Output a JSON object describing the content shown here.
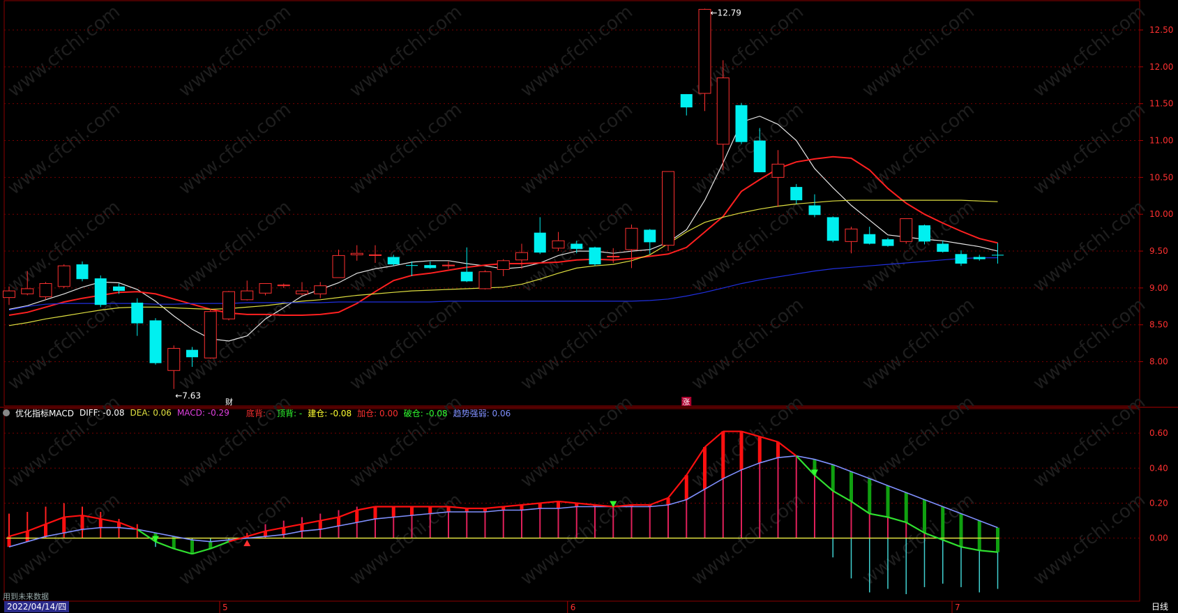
{
  "chart_data": {
    "type": "candlestick",
    "price_axis": {
      "ticks": [
        8.0,
        8.5,
        9.0,
        9.5,
        10.0,
        10.5,
        11.0,
        11.5,
        12.0,
        12.5
      ],
      "range": [
        7.4,
        12.85
      ]
    },
    "annotations": {
      "high_label": "12.79",
      "low_label": "7.63",
      "finance_flag": "财",
      "limit_flag": "涨"
    },
    "candles": [
      {
        "o": 8.87,
        "h": 9.02,
        "l": 8.77,
        "c": 8.96
      },
      {
        "o": 8.92,
        "h": 9.23,
        "l": 8.9,
        "c": 8.99
      },
      {
        "o": 8.88,
        "h": 9.08,
        "l": 8.84,
        "c": 9.06
      },
      {
        "o": 9.02,
        "h": 9.32,
        "l": 9.0,
        "c": 9.3
      },
      {
        "o": 9.32,
        "h": 9.36,
        "l": 9.09,
        "c": 9.12
      },
      {
        "o": 9.13,
        "h": 9.17,
        "l": 8.74,
        "c": 8.77
      },
      {
        "o": 9.02,
        "h": 9.06,
        "l": 8.92,
        "c": 8.96
      },
      {
        "o": 8.8,
        "h": 8.86,
        "l": 8.35,
        "c": 8.52
      },
      {
        "o": 8.56,
        "h": 8.59,
        "l": 7.96,
        "c": 7.98
      },
      {
        "o": 7.88,
        "h": 8.22,
        "l": 7.63,
        "c": 8.18
      },
      {
        "o": 8.16,
        "h": 8.2,
        "l": 7.93,
        "c": 8.06
      },
      {
        "o": 8.05,
        "h": 8.72,
        "l": 8.04,
        "c": 8.68
      },
      {
        "o": 8.58,
        "h": 8.96,
        "l": 8.56,
        "c": 8.95
      },
      {
        "o": 8.84,
        "h": 9.1,
        "l": 8.83,
        "c": 8.96
      },
      {
        "o": 8.93,
        "h": 9.06,
        "l": 8.9,
        "c": 9.06
      },
      {
        "o": 9.03,
        "h": 9.06,
        "l": 9.0,
        "c": 9.04
      },
      {
        "o": 8.92,
        "h": 9.08,
        "l": 8.9,
        "c": 8.96
      },
      {
        "o": 8.92,
        "h": 9.08,
        "l": 8.86,
        "c": 9.03
      },
      {
        "o": 9.14,
        "h": 9.52,
        "l": 9.14,
        "c": 9.44
      },
      {
        "o": 9.45,
        "h": 9.58,
        "l": 9.37,
        "c": 9.47
      },
      {
        "o": 9.44,
        "h": 9.58,
        "l": 9.34,
        "c": 9.45
      },
      {
        "o": 9.42,
        "h": 9.45,
        "l": 9.3,
        "c": 9.32
      },
      {
        "o": 9.31,
        "h": 9.36,
        "l": 9.16,
        "c": 9.3
      },
      {
        "o": 9.31,
        "h": 9.36,
        "l": 9.26,
        "c": 9.27
      },
      {
        "o": 9.3,
        "h": 9.36,
        "l": 9.26,
        "c": 9.31
      },
      {
        "o": 9.22,
        "h": 9.55,
        "l": 9.08,
        "c": 9.09
      },
      {
        "o": 8.99,
        "h": 9.24,
        "l": 8.98,
        "c": 9.22
      },
      {
        "o": 9.25,
        "h": 9.39,
        "l": 9.16,
        "c": 9.37
      },
      {
        "o": 9.38,
        "h": 9.6,
        "l": 9.26,
        "c": 9.48
      },
      {
        "o": 9.75,
        "h": 9.96,
        "l": 9.46,
        "c": 9.48
      },
      {
        "o": 9.54,
        "h": 9.76,
        "l": 9.5,
        "c": 9.64
      },
      {
        "o": 9.6,
        "h": 9.64,
        "l": 9.47,
        "c": 9.53
      },
      {
        "o": 9.55,
        "h": 9.56,
        "l": 9.3,
        "c": 9.32
      },
      {
        "o": 9.42,
        "h": 9.54,
        "l": 9.34,
        "c": 9.43
      },
      {
        "o": 9.52,
        "h": 9.86,
        "l": 9.27,
        "c": 9.81
      },
      {
        "o": 9.79,
        "h": 9.8,
        "l": 9.46,
        "c": 9.62
      },
      {
        "o": 9.58,
        "h": 10.58,
        "l": 9.5,
        "c": 10.58
      },
      {
        "o": 11.63,
        "h": 11.63,
        "l": 11.34,
        "c": 11.45
      },
      {
        "o": 11.64,
        "h": 12.79,
        "l": 11.4,
        "c": 12.78
      },
      {
        "o": 10.95,
        "h": 12.09,
        "l": 10.6,
        "c": 11.85
      },
      {
        "o": 11.48,
        "h": 11.51,
        "l": 10.95,
        "c": 10.98
      },
      {
        "o": 11.0,
        "h": 11.17,
        "l": 10.57,
        "c": 10.57
      },
      {
        "o": 10.5,
        "h": 10.87,
        "l": 10.1,
        "c": 10.68
      },
      {
        "o": 10.37,
        "h": 10.41,
        "l": 10.14,
        "c": 10.19
      },
      {
        "o": 10.12,
        "h": 10.27,
        "l": 9.96,
        "c": 9.99
      },
      {
        "o": 9.96,
        "h": 9.97,
        "l": 9.62,
        "c": 9.64
      },
      {
        "o": 9.63,
        "h": 9.83,
        "l": 9.47,
        "c": 9.8
      },
      {
        "o": 9.73,
        "h": 9.83,
        "l": 9.59,
        "c": 9.6
      },
      {
        "o": 9.66,
        "h": 9.68,
        "l": 9.56,
        "c": 9.57
      },
      {
        "o": 9.63,
        "h": 9.94,
        "l": 9.6,
        "c": 9.94
      },
      {
        "o": 9.85,
        "h": 9.86,
        "l": 9.59,
        "c": 9.63
      },
      {
        "o": 9.6,
        "h": 9.64,
        "l": 9.48,
        "c": 9.49
      },
      {
        "o": 9.46,
        "h": 9.51,
        "l": 9.3,
        "c": 9.33
      },
      {
        "o": 9.42,
        "h": 9.45,
        "l": 9.37,
        "c": 9.39
      },
      {
        "o": 9.45,
        "h": 9.61,
        "l": 9.33,
        "c": 9.44
      }
    ],
    "moving_averages": [
      {
        "name": "MA5",
        "color": "#e6e6e6",
        "values": [
          8.71,
          8.76,
          8.84,
          8.92,
          9.01,
          9.08,
          9.07,
          8.98,
          8.82,
          8.62,
          8.44,
          8.31,
          8.28,
          8.35,
          8.58,
          8.73,
          8.89,
          8.98,
          9.07,
          9.2,
          9.26,
          9.3,
          9.35,
          9.37,
          9.37,
          9.33,
          9.3,
          9.26,
          9.28,
          9.34,
          9.44,
          9.5,
          9.5,
          9.47,
          9.5,
          9.52,
          9.62,
          9.79,
          10.19,
          10.7,
          11.25,
          11.33,
          11.22,
          11.0,
          10.62,
          10.36,
          10.12,
          9.92,
          9.72,
          9.69,
          9.66,
          9.64,
          9.6,
          9.56,
          9.5
        ]
      },
      {
        "name": "MA10",
        "color": "#ff2020",
        "values": [
          8.63,
          8.67,
          8.74,
          8.81,
          8.86,
          8.9,
          8.94,
          8.95,
          8.92,
          8.85,
          8.78,
          8.71,
          8.66,
          8.64,
          8.64,
          8.63,
          8.63,
          8.64,
          8.67,
          8.79,
          8.95,
          9.1,
          9.17,
          9.2,
          9.24,
          9.28,
          9.31,
          9.33,
          9.33,
          9.34,
          9.35,
          9.38,
          9.39,
          9.38,
          9.4,
          9.43,
          9.46,
          9.55,
          9.76,
          9.97,
          10.31,
          10.47,
          10.62,
          10.71,
          10.75,
          10.78,
          10.76,
          10.6,
          10.35,
          10.15,
          10.0,
          9.88,
          9.77,
          9.67,
          9.61
        ]
      },
      {
        "name": "MA30",
        "color": "#e0e040",
        "values": [
          8.49,
          8.53,
          8.58,
          8.62,
          8.66,
          8.7,
          8.73,
          8.74,
          8.74,
          8.73,
          8.72,
          8.71,
          8.72,
          8.74,
          8.76,
          8.79,
          8.82,
          8.84,
          8.87,
          8.9,
          8.92,
          8.94,
          8.96,
          8.97,
          8.98,
          8.99,
          9.0,
          9.01,
          9.05,
          9.12,
          9.2,
          9.27,
          9.3,
          9.32,
          9.37,
          9.45,
          9.6,
          9.76,
          9.89,
          9.96,
          10.02,
          10.07,
          10.11,
          10.14,
          10.16,
          10.18,
          10.19,
          10.19,
          10.19,
          10.19,
          10.19,
          10.19,
          10.19,
          10.18,
          10.17
        ]
      },
      {
        "name": "MA60",
        "color": "#2030e0",
        "values": [
          8.7,
          8.75,
          8.78,
          8.79,
          8.79,
          8.79,
          8.79,
          8.79,
          8.78,
          8.78,
          8.79,
          8.79,
          8.79,
          8.8,
          8.8,
          8.8,
          8.8,
          8.8,
          8.81,
          8.81,
          8.81,
          8.81,
          8.81,
          8.81,
          8.82,
          8.82,
          8.82,
          8.82,
          8.82,
          8.82,
          8.82,
          8.82,
          8.82,
          8.82,
          8.82,
          8.83,
          8.85,
          8.89,
          8.94,
          9.0,
          9.06,
          9.11,
          9.15,
          9.19,
          9.23,
          9.26,
          9.28,
          9.3,
          9.32,
          9.34,
          9.36,
          9.38,
          9.4,
          9.41,
          9.41
        ]
      }
    ],
    "indicator": {
      "name": "优化指标MACD",
      "axis_ticks": [
        0.6,
        0.4,
        0.2,
        0.0
      ],
      "range": [
        -0.36,
        0.7
      ],
      "labels": [
        {
          "text": "DIFF: -0.08",
          "color": "#ffffff"
        },
        {
          "text": "DEA: 0.06",
          "color": "#e0e040"
        },
        {
          "text": "MACD: -0.29",
          "color": "#e040e0"
        },
        {
          "text": "底背: -",
          "color": "#ff3030"
        },
        {
          "text": "顶背: -",
          "color": "#30ff30"
        },
        {
          "text": "建仓: -0.08",
          "color": "#ffff30"
        },
        {
          "text": "加仓: 0.00",
          "color": "#ff3030"
        },
        {
          "text": "破仓: -0.08",
          "color": "#30ff30"
        },
        {
          "text": "趋势强弱: 0.06",
          "color": "#8090ff"
        }
      ],
      "diff": [
        0.01,
        0.04,
        0.08,
        0.12,
        0.13,
        0.11,
        0.09,
        0.05,
        -0.02,
        -0.06,
        -0.09,
        -0.06,
        -0.02,
        0.01,
        0.04,
        0.06,
        0.08,
        0.1,
        0.12,
        0.16,
        0.18,
        0.18,
        0.18,
        0.18,
        0.18,
        0.17,
        0.17,
        0.18,
        0.19,
        0.2,
        0.21,
        0.2,
        0.19,
        0.18,
        0.19,
        0.19,
        0.23,
        0.36,
        0.52,
        0.61,
        0.61,
        0.58,
        0.55,
        0.47,
        0.36,
        0.27,
        0.21,
        0.14,
        0.12,
        0.09,
        0.03,
        -0.01,
        -0.05,
        -0.07,
        -0.08
      ],
      "dea": [
        -0.05,
        -0.02,
        0.01,
        0.03,
        0.05,
        0.06,
        0.06,
        0.05,
        0.03,
        0.01,
        -0.01,
        -0.02,
        -0.01,
        0.0,
        0.01,
        0.02,
        0.04,
        0.05,
        0.07,
        0.09,
        0.11,
        0.12,
        0.13,
        0.14,
        0.15,
        0.15,
        0.15,
        0.16,
        0.16,
        0.17,
        0.17,
        0.18,
        0.18,
        0.18,
        0.18,
        0.18,
        0.19,
        0.22,
        0.28,
        0.34,
        0.39,
        0.43,
        0.46,
        0.47,
        0.45,
        0.42,
        0.38,
        0.34,
        0.3,
        0.26,
        0.22,
        0.18,
        0.14,
        0.1,
        0.06
      ],
      "macd_low": [
        -0.01,
        0.0,
        0.0,
        0.0,
        0.0,
        0.0,
        0.0,
        0.0,
        -0.05,
        -0.06,
        -0.09,
        -0.06,
        -0.02,
        0.0,
        0.0,
        0.0,
        0.0,
        0.0,
        0.0,
        0.0,
        0.0,
        0.0,
        0.0,
        0.0,
        0.0,
        0.0,
        0.0,
        0.0,
        0.0,
        0.0,
        0.0,
        0.0,
        0.0,
        0.0,
        0.0,
        0.0,
        0.0,
        0.0,
        0.0,
        0.0,
        0.0,
        0.0,
        0.0,
        0.0,
        0.0,
        -0.11,
        -0.23,
        -0.31,
        -0.29,
        -0.32,
        -0.28,
        -0.26,
        -0.28,
        -0.31,
        -0.29
      ],
      "macd_high": [
        0.14,
        0.15,
        0.18,
        0.2,
        0.18,
        0.15,
        0.11,
        0.08,
        0.02,
        0.01,
        0.0,
        0.0,
        0.0,
        0.03,
        0.08,
        0.1,
        0.12,
        0.14,
        0.16,
        0.18,
        0.18,
        0.18,
        0.18,
        0.18,
        0.18,
        0.17,
        0.17,
        0.18,
        0.19,
        0.2,
        0.21,
        0.2,
        0.19,
        0.18,
        0.19,
        0.19,
        0.23,
        0.36,
        0.52,
        0.61,
        0.61,
        0.58,
        0.55,
        0.47,
        0.36,
        0.27,
        0.21,
        0.14,
        0.12,
        0.09,
        0.03,
        0.0,
        0.0,
        0.0,
        0.0
      ]
    },
    "time_axis": {
      "labels": [
        {
          "text": "5",
          "index": 12
        },
        {
          "text": "6",
          "index": 31
        },
        {
          "text": "7",
          "index": 52
        }
      ]
    }
  },
  "footer": {
    "date": "2022/04/14/四",
    "period": "日线",
    "future_note": "用到未来数据"
  },
  "watermark": "www.cfchi.com"
}
